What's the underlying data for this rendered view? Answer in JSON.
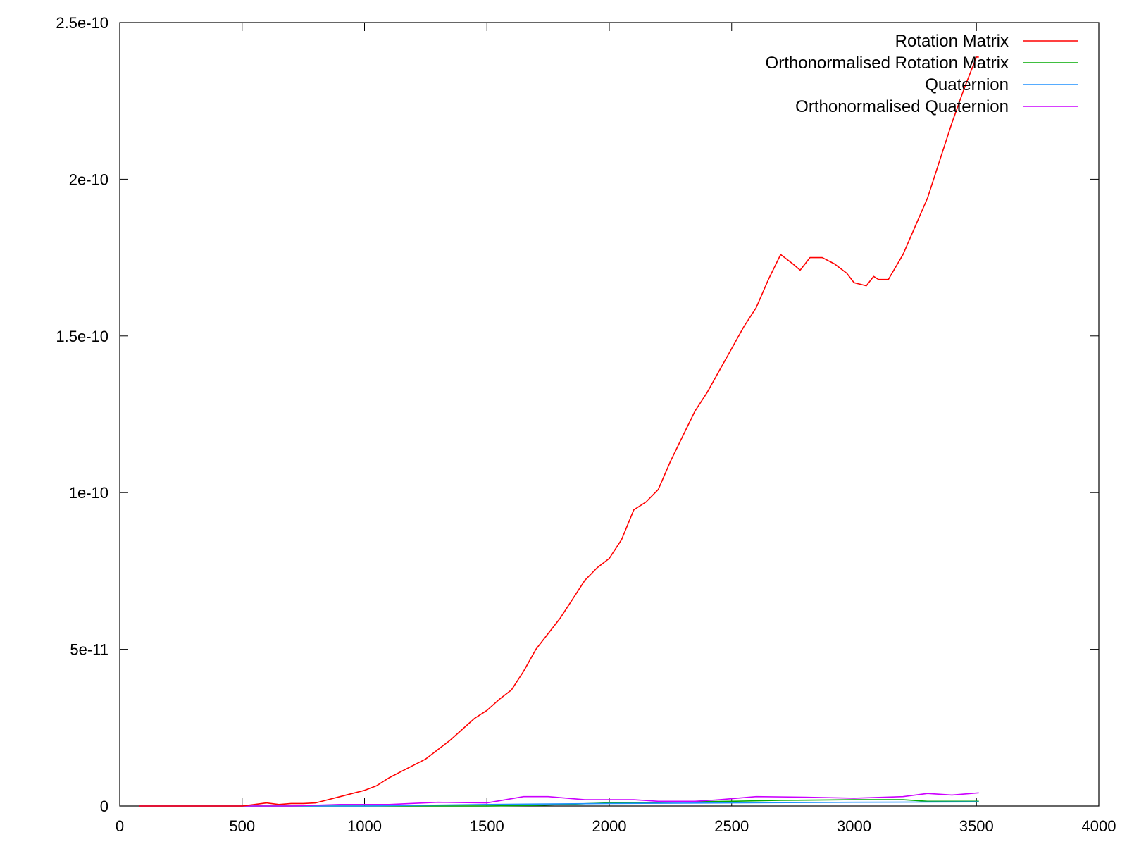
{
  "chart_data": {
    "type": "line",
    "title": "",
    "xlabel": "",
    "ylabel": "",
    "xlim": [
      0,
      4000
    ],
    "ylim": [
      0,
      2.5e-10
    ],
    "x_ticks": [
      0,
      500,
      1000,
      1500,
      2000,
      2500,
      3000,
      3500,
      4000
    ],
    "x_tick_labels": [
      "0",
      "500",
      "1000",
      "1500",
      "2000",
      "2500",
      "3000",
      "3500",
      "4000"
    ],
    "y_ticks": [
      0,
      5e-11,
      1e-10,
      1.5e-10,
      2e-10,
      2.5e-10
    ],
    "y_tick_labels": [
      "0",
      "5e-11",
      "1e-10",
      "1.5e-10",
      "2e-10",
      "2.5e-10"
    ],
    "grid": false,
    "legend_position": "top-right",
    "series": [
      {
        "name": "Rotation Matrix",
        "color": "#ff0000",
        "points": [
          [
            80,
            0
          ],
          [
            500,
            0
          ],
          [
            550,
            5e-13
          ],
          [
            600,
            1e-12
          ],
          [
            650,
            5e-13
          ],
          [
            700,
            8e-13
          ],
          [
            750,
            8e-13
          ],
          [
            800,
            1e-12
          ],
          [
            850,
            2e-12
          ],
          [
            900,
            3e-12
          ],
          [
            950,
            4e-12
          ],
          [
            1000,
            5e-12
          ],
          [
            1050,
            6.5e-12
          ],
          [
            1100,
            9e-12
          ],
          [
            1150,
            1.1e-11
          ],
          [
            1200,
            1.3e-11
          ],
          [
            1250,
            1.5e-11
          ],
          [
            1300,
            1.8e-11
          ],
          [
            1350,
            2.1e-11
          ],
          [
            1400,
            2.45e-11
          ],
          [
            1450,
            2.8e-11
          ],
          [
            1500,
            3.05e-11
          ],
          [
            1550,
            3.4e-11
          ],
          [
            1600,
            3.7e-11
          ],
          [
            1650,
            4.3e-11
          ],
          [
            1700,
            5e-11
          ],
          [
            1750,
            5.5e-11
          ],
          [
            1800,
            6e-11
          ],
          [
            1850,
            6.6e-11
          ],
          [
            1900,
            7.2e-11
          ],
          [
            1950,
            7.6e-11
          ],
          [
            2000,
            7.9e-11
          ],
          [
            2050,
            8.5e-11
          ],
          [
            2100,
            9.45e-11
          ],
          [
            2150,
            9.7e-11
          ],
          [
            2200,
            1.01e-10
          ],
          [
            2250,
            1.1e-10
          ],
          [
            2300,
            1.18e-10
          ],
          [
            2350,
            1.26e-10
          ],
          [
            2400,
            1.32e-10
          ],
          [
            2450,
            1.39e-10
          ],
          [
            2500,
            1.46e-10
          ],
          [
            2550,
            1.53e-10
          ],
          [
            2600,
            1.59e-10
          ],
          [
            2650,
            1.68e-10
          ],
          [
            2700,
            1.76e-10
          ],
          [
            2750,
            1.73e-10
          ],
          [
            2780,
            1.71e-10
          ],
          [
            2820,
            1.75e-10
          ],
          [
            2870,
            1.75e-10
          ],
          [
            2920,
            1.73e-10
          ],
          [
            2970,
            1.7e-10
          ],
          [
            3000,
            1.67e-10
          ],
          [
            3050,
            1.66e-10
          ],
          [
            3080,
            1.69e-10
          ],
          [
            3100,
            1.68e-10
          ],
          [
            3140,
            1.68e-10
          ],
          [
            3200,
            1.76e-10
          ],
          [
            3250,
            1.85e-10
          ],
          [
            3300,
            1.94e-10
          ],
          [
            3350,
            2.06e-10
          ],
          [
            3400,
            2.18e-10
          ],
          [
            3450,
            2.29e-10
          ],
          [
            3500,
            2.39e-10
          ],
          [
            3510,
            2.39e-10
          ]
        ]
      },
      {
        "name": "Orthonormalised Rotation Matrix",
        "color": "#00aa00",
        "points": [
          [
            80,
            0
          ],
          [
            1000,
            0
          ],
          [
            1500,
            0
          ],
          [
            1700,
            2e-13
          ],
          [
            2000,
            1e-12
          ],
          [
            2500,
            1.5e-12
          ],
          [
            2700,
            1.8e-12
          ],
          [
            3000,
            2e-12
          ],
          [
            3200,
            2e-12
          ],
          [
            3300,
            1.5e-12
          ],
          [
            3510,
            1.5e-12
          ]
        ]
      },
      {
        "name": "Quaternion",
        "color": "#1e90ff",
        "points": [
          [
            80,
            0
          ],
          [
            1000,
            0
          ],
          [
            1500,
            5e-13
          ],
          [
            2000,
            8e-13
          ],
          [
            2500,
            1e-12
          ],
          [
            3000,
            1.2e-12
          ],
          [
            3510,
            1.3e-12
          ]
        ]
      },
      {
        "name": "Orthonormalised Quaternion",
        "color": "#cc00ff",
        "points": [
          [
            80,
            0
          ],
          [
            700,
            0
          ],
          [
            900,
            5e-13
          ],
          [
            1100,
            5e-13
          ],
          [
            1300,
            1.2e-12
          ],
          [
            1500,
            1e-12
          ],
          [
            1650,
            3e-12
          ],
          [
            1750,
            3e-12
          ],
          [
            1900,
            2e-12
          ],
          [
            2000,
            2e-12
          ],
          [
            2100,
            2e-12
          ],
          [
            2200,
            1.5e-12
          ],
          [
            2350,
            1.5e-12
          ],
          [
            2450,
            2e-12
          ],
          [
            2600,
            3e-12
          ],
          [
            2800,
            2.8e-12
          ],
          [
            3000,
            2.5e-12
          ],
          [
            3200,
            3e-12
          ],
          [
            3300,
            4e-12
          ],
          [
            3400,
            3.5e-12
          ],
          [
            3510,
            4.2e-12
          ]
        ]
      }
    ]
  }
}
